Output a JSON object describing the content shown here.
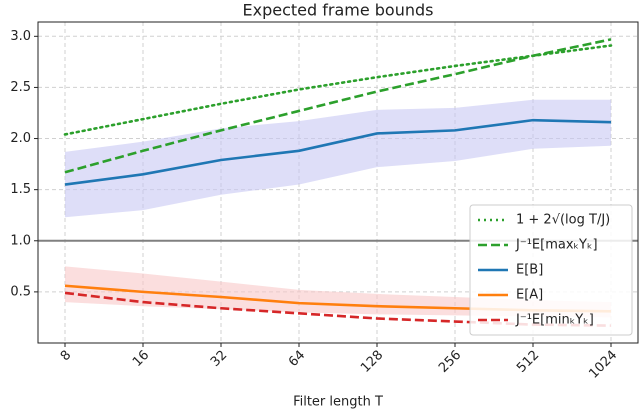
{
  "chart_data": {
    "type": "line",
    "title": "Expected frame bounds",
    "x_label": "Filter length T",
    "categories": [
      "8",
      "16",
      "32",
      "64",
      "128",
      "256",
      "512",
      "1024"
    ],
    "ylim": [
      0,
      3.14
    ],
    "yticks": [
      0.5,
      {
        "value": 1,
        "label": "1.0"
      },
      1.5,
      {
        "value": 2,
        "label": "2.0"
      },
      2.5,
      {
        "value": 3,
        "label": "3.0"
      }
    ],
    "grid": true,
    "legend": "lower right",
    "hline": {
      "value": 1,
      "color": "#808080"
    },
    "series": [
      {
        "name": "1 + 2√(log T/J)",
        "color": "#2ca02c",
        "dash": "dotted",
        "values": [
          2.04,
          2.19,
          2.34,
          2.48,
          2.6,
          2.71,
          2.81,
          2.91
        ]
      },
      {
        "name": "J⁻¹E[maxₖYₖ]",
        "color": "#2ca02c",
        "dash": "dashed",
        "values": [
          1.67,
          1.88,
          2.08,
          2.27,
          2.46,
          2.63,
          2.81,
          2.97
        ]
      },
      {
        "name": "E[B]",
        "color": "#1f77b4",
        "dash": "solid",
        "values": [
          1.55,
          1.65,
          1.79,
          1.88,
          2.05,
          2.08,
          2.18,
          2.16
        ],
        "band_color": "#c8c8f4",
        "upper": [
          1.87,
          1.97,
          2.1,
          2.17,
          2.28,
          2.3,
          2.38,
          2.38
        ],
        "lower": [
          1.23,
          1.3,
          1.45,
          1.55,
          1.72,
          1.78,
          1.9,
          1.93
        ]
      },
      {
        "name": "E[A]",
        "color": "#ff7f0e",
        "dash": "solid",
        "values": [
          0.56,
          0.5,
          0.45,
          0.39,
          0.36,
          0.34,
          0.32,
          0.31
        ],
        "band_color": "#f8c8c8",
        "upper": [
          0.75,
          0.68,
          0.6,
          0.52,
          0.48,
          0.45,
          0.42,
          0.4
        ],
        "lower": [
          0.4,
          0.36,
          0.33,
          0.3,
          0.28,
          0.27,
          0.26,
          0.25
        ]
      },
      {
        "name": "J⁻¹E[minₖYₖ]",
        "color": "#d62728",
        "dash": "dashed",
        "values": [
          0.49,
          0.4,
          0.34,
          0.29,
          0.24,
          0.21,
          0.18,
          0.17
        ]
      }
    ]
  }
}
